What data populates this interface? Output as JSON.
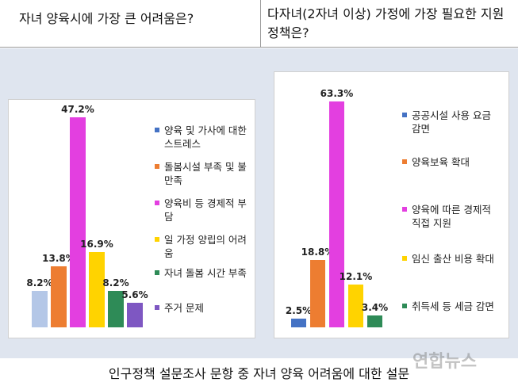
{
  "chart_data": [
    {
      "type": "bar",
      "title": "자녀 양육시에 가장 큰 어려움은?",
      "categories": [
        "양육 및 가사에 대한 스트레스",
        "돌봄시설 부족 및 불만족",
        "양육비 등 경제적 부담",
        "일 가정 양립의 어려움",
        "자녀 돌봄 시간 부족",
        "주거 문제"
      ],
      "values": [
        8.2,
        13.8,
        47.2,
        16.9,
        8.2,
        5.6
      ],
      "value_labels": [
        "8.2%",
        "13.8%",
        "47.2%",
        "16.9%",
        "8.2%",
        "5.6%"
      ],
      "colors": [
        "#b4c7e7",
        "#ed7d31",
        "#e33fe0",
        "#ffd300",
        "#2e8b57",
        "#7e57c2"
      ],
      "legend_colors": [
        "#4472c4",
        "#ed7d31",
        "#e33fe0",
        "#ffd300",
        "#2e8b57",
        "#7e57c2"
      ]
    },
    {
      "type": "bar",
      "title": "다자녀(2자녀 이상) 가정에 가장 필요한 지원 정책은?",
      "categories": [
        "공공시설 사용 요금 감면",
        "양육보육 확대",
        "양육에 따른 경제적 직접 지원",
        "임신 출산 비용 확대",
        "취득세 등 세금 감면"
      ],
      "values": [
        2.5,
        18.8,
        63.3,
        12.1,
        3.4
      ],
      "value_labels": [
        "2.5%",
        "18.8%",
        "63.3%",
        "12.1%",
        "3.4%"
      ],
      "colors": [
        "#4472c4",
        "#ed7d31",
        "#e33fe0",
        "#ffd300",
        "#2e8b57"
      ],
      "legend_colors": [
        "#4472c4",
        "#ed7d31",
        "#e33fe0",
        "#ffd300",
        "#2e8b57"
      ]
    }
  ],
  "caption": "인구정책 설문조사 문항 중 자녀 양육 어려움에 대한 설문",
  "watermark": "연합뉴스"
}
